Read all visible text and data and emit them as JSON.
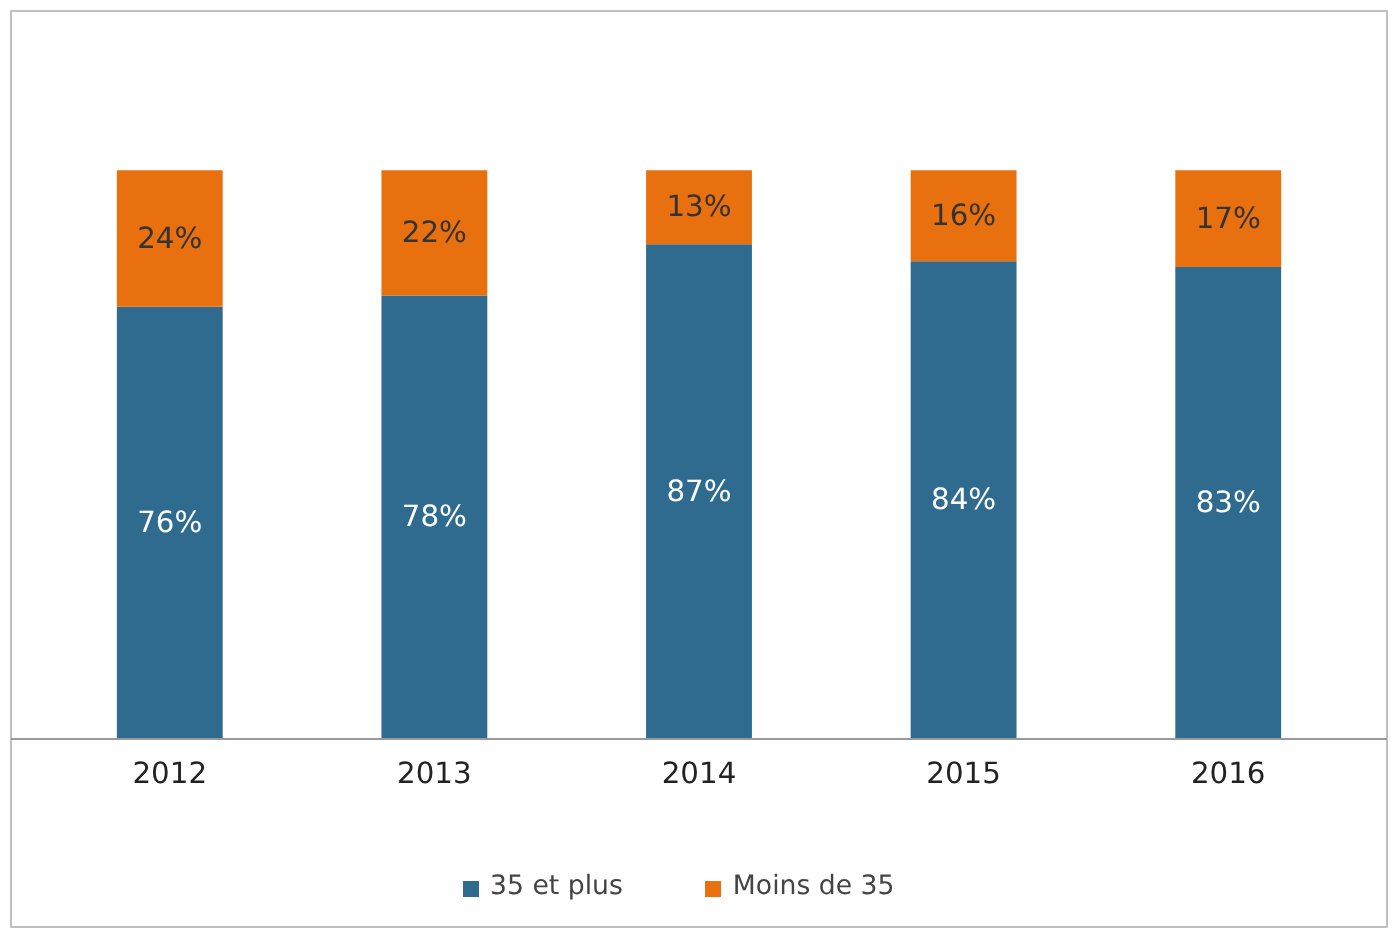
{
  "chart_data": {
    "type": "bar",
    "stacked": true,
    "legend": "bottom",
    "categories": [
      "2012",
      "2013",
      "2014",
      "2015",
      "2016"
    ],
    "series": [
      {
        "name": "35 et plus",
        "color": "#2e6b8f",
        "values": [
          76,
          78,
          87,
          84,
          83
        ],
        "value_labels": [
          "76%",
          "78%",
          "87%",
          "84%",
          "83%"
        ]
      },
      {
        "name": "Moins de 35",
        "color": "#e8700e",
        "values": [
          24,
          22,
          13,
          16,
          17
        ],
        "value_labels": [
          "24%",
          "22%",
          "13%",
          "16%",
          "17%"
        ]
      }
    ]
  }
}
